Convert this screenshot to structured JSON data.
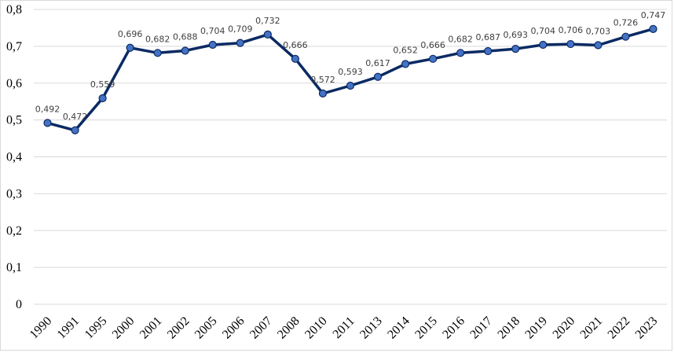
{
  "chart_data": {
    "type": "line",
    "title": "",
    "xlabel": "",
    "ylabel": "",
    "categories": [
      "1990",
      "1991",
      "1995",
      "2000",
      "2001",
      "2002",
      "2005",
      "2006",
      "2007",
      "2008",
      "2010",
      "2011",
      "2013",
      "2014",
      "2015",
      "2016",
      "2017",
      "2018",
      "2019",
      "2020",
      "2021",
      "2022",
      "2023"
    ],
    "series": [
      {
        "values": [
          0.492,
          0.472,
          0.559,
          0.696,
          0.682,
          0.688,
          0.704,
          0.709,
          0.732,
          0.666,
          0.572,
          0.593,
          0.617,
          0.652,
          0.666,
          0.682,
          0.687,
          0.693,
          0.704,
          0.706,
          0.703,
          0.726,
          0.747
        ],
        "data_labels": [
          "0,492",
          "0,472",
          "0,559",
          "0,696",
          "0,682",
          "0,688",
          "0,704",
          "0,709",
          "0,732",
          "0,666",
          "0,572",
          "0,593",
          "0,617",
          "0,652",
          "0,666",
          "0,682",
          "0,687",
          "0,693",
          "0,704",
          "0,706",
          "0,703",
          "0,726",
          "0,747"
        ],
        "line_color": "#0b2a63",
        "marker_color": "#4472c4"
      }
    ],
    "ylim": [
      0,
      0.8
    ],
    "y_ticks": [
      0,
      0.1,
      0.2,
      0.3,
      0.4,
      0.5,
      0.6,
      0.7,
      0.8
    ],
    "y_tick_labels": [
      "0",
      "0,1",
      "0,2",
      "0,3",
      "0,4",
      "0,5",
      "0,6",
      "0,7",
      "0,8"
    ],
    "grid": true,
    "legend": "none",
    "x_tick_rotation": -45
  }
}
